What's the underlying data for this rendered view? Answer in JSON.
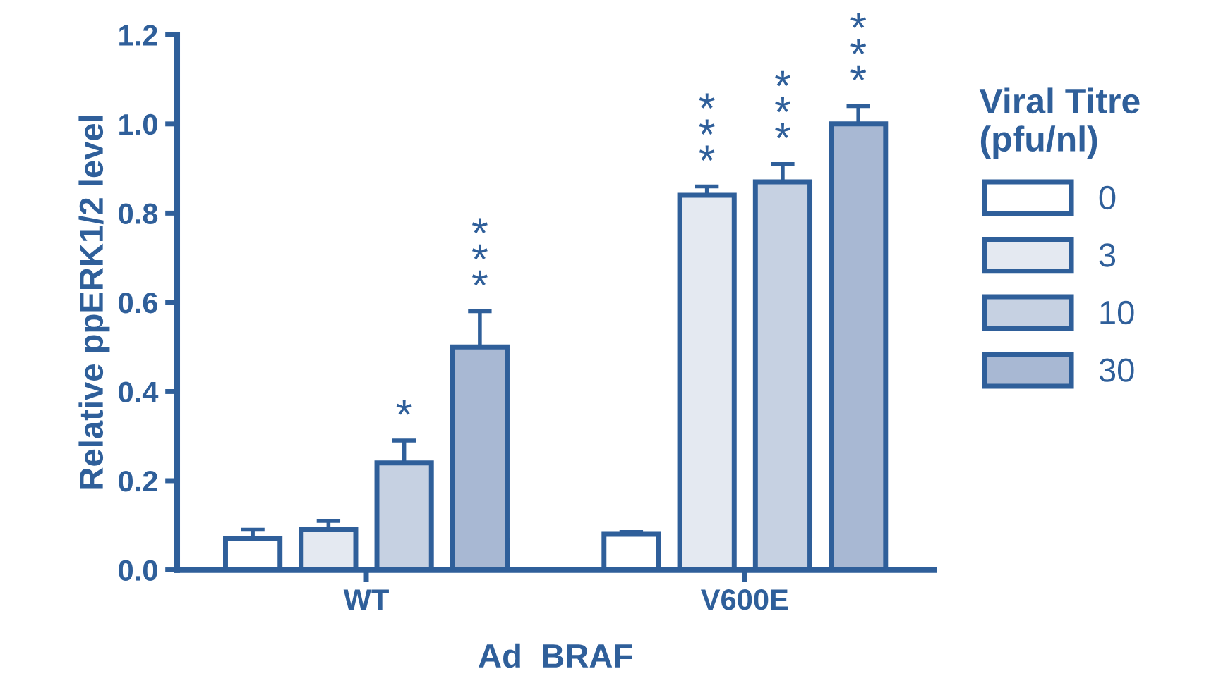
{
  "chart_data": {
    "type": "bar",
    "xlabel": "Ad  BRAF",
    "ylabel": "Relative ppERK1/2 level",
    "legend_title": "Viral Titre\n(pfu/nl)",
    "legend": "right",
    "grid": false,
    "categories": [
      "WT",
      "V600E"
    ],
    "ylim": [
      0,
      1.2
    ],
    "yticks": [
      {
        "value": 0,
        "label": "0.0"
      },
      {
        "value": 0.2,
        "label": "0.2"
      },
      {
        "value": 0.4,
        "label": "0.4"
      },
      {
        "value": 0.6,
        "label": "0.6"
      },
      {
        "value": 0.8,
        "label": "0.8"
      },
      {
        "value": 1.0,
        "label": "1.0"
      },
      {
        "value": 1.2,
        "label": "1.2"
      }
    ],
    "series": [
      {
        "name": "0",
        "color": "#ffffff",
        "values": [
          0.07,
          0.08
        ],
        "errors": [
          [
            0.07,
            0.09
          ],
          [
            0.08,
            0.085
          ]
        ]
      },
      {
        "name": "3",
        "color": "#e4e9f1",
        "values": [
          0.09,
          0.84
        ],
        "errors": [
          [
            0.09,
            0.11
          ],
          [
            0.84,
            0.86
          ]
        ],
        "value_labels": [
          null,
          "*\n*\n*"
        ]
      },
      {
        "name": "10",
        "color": "#c6d1e2",
        "values": [
          0.24,
          0.87
        ],
        "errors": [
          [
            0.24,
            0.29
          ],
          [
            0.87,
            0.91
          ]
        ],
        "value_labels": [
          "*",
          "*\n*\n*"
        ]
      },
      {
        "name": "30",
        "color": "#a8b8d3",
        "values": [
          0.5,
          1.0
        ],
        "errors": [
          [
            0.5,
            0.58
          ],
          [
            1.0,
            1.04
          ]
        ],
        "value_labels": [
          "*\n*\n*",
          "*\n*\n*"
        ]
      }
    ]
  }
}
